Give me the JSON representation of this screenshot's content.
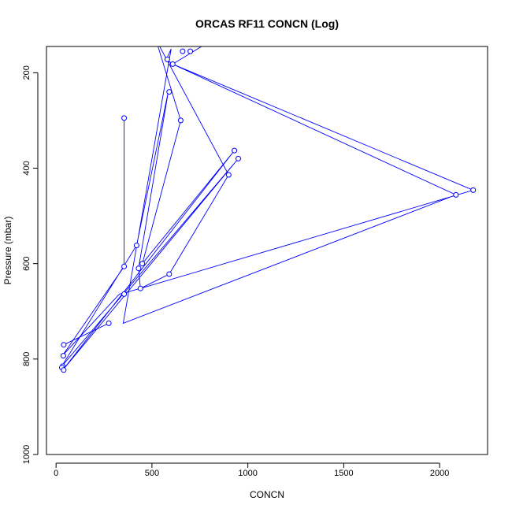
{
  "chart_data": {
    "type": "line",
    "title": "ORCAS RF11 CONCN (Log)",
    "xlabel": "CONCN",
    "ylabel": "Pressure (mbar)",
    "xlim": [
      -50,
      2250
    ],
    "ylim": [
      1000,
      145
    ],
    "y_reversed": true,
    "x_ticks": [
      0,
      500,
      1000,
      1500,
      2000
    ],
    "y_ticks": [
      200,
      400,
      600,
      800,
      1000
    ],
    "series_color": "#0000ff",
    "series": [
      {
        "values": [
          {
            "x": 840,
            "y": 125
          },
          {
            "x": 608,
            "y": 182
          },
          {
            "x": 2085,
            "y": 456
          },
          {
            "x": 350,
            "y": 725
          },
          {
            "x": 600,
            "y": 150
          },
          {
            "x": 575,
            "y": 172
          },
          {
            "x": 608,
            "y": 182
          },
          {
            "x": 2175,
            "y": 446
          },
          {
            "x": 440,
            "y": 652
          },
          {
            "x": 590,
            "y": 622
          },
          {
            "x": 900,
            "y": 414
          },
          {
            "x": 520,
            "y": 130
          },
          {
            "x": 650,
            "y": 300
          },
          {
            "x": 450,
            "y": 600
          },
          {
            "x": 930,
            "y": 363
          },
          {
            "x": 35,
            "y": 823
          },
          {
            "x": 950,
            "y": 380
          },
          {
            "x": 30,
            "y": 815
          },
          {
            "x": 420,
            "y": 562
          },
          {
            "x": 585,
            "y": 240
          },
          {
            "x": 430,
            "y": 610
          },
          {
            "x": 440,
            "y": 652
          },
          {
            "x": 330,
            "y": 664
          },
          {
            "x": 33,
            "y": 793
          },
          {
            "x": 355,
            "y": 606
          },
          {
            "x": 355,
            "y": 295
          }
        ]
      },
      {
        "values": [
          {
            "x": 40,
            "y": 770
          },
          {
            "x": 275,
            "y": 725
          }
        ]
      }
    ],
    "markers": [
      {
        "x": 660,
        "y": 155
      },
      {
        "x": 700,
        "y": 155
      },
      {
        "x": 580,
        "y": 172
      },
      {
        "x": 608,
        "y": 182
      },
      {
        "x": 590,
        "y": 240
      },
      {
        "x": 650,
        "y": 300
      },
      {
        "x": 355,
        "y": 295
      },
      {
        "x": 930,
        "y": 363
      },
      {
        "x": 950,
        "y": 380
      },
      {
        "x": 900,
        "y": 414
      },
      {
        "x": 2175,
        "y": 446
      },
      {
        "x": 2085,
        "y": 456
      },
      {
        "x": 420,
        "y": 562
      },
      {
        "x": 450,
        "y": 600
      },
      {
        "x": 355,
        "y": 606
      },
      {
        "x": 430,
        "y": 610
      },
      {
        "x": 590,
        "y": 622
      },
      {
        "x": 440,
        "y": 652
      },
      {
        "x": 355,
        "y": 664
      },
      {
        "x": 275,
        "y": 725
      },
      {
        "x": 40,
        "y": 770
      },
      {
        "x": 38,
        "y": 793
      },
      {
        "x": 35,
        "y": 815
      },
      {
        "x": 30,
        "y": 818
      },
      {
        "x": 40,
        "y": 823
      }
    ]
  }
}
